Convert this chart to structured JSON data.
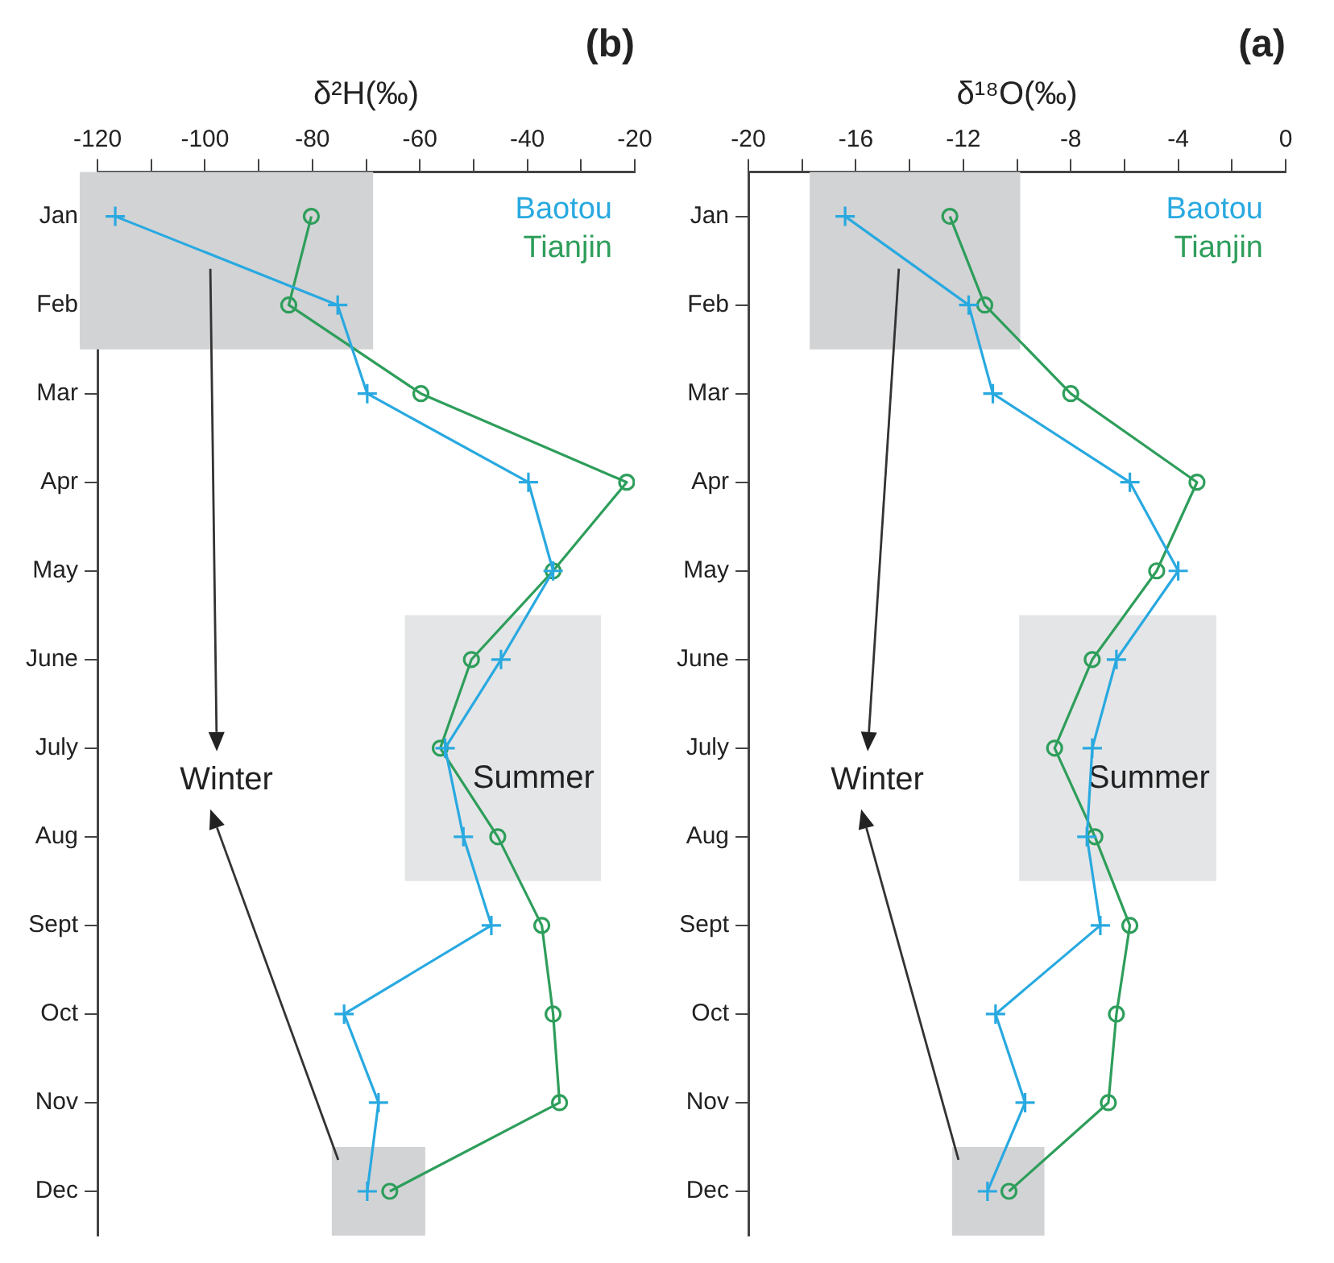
{
  "chart_data": [
    {
      "type": "line",
      "orientation": "horizontal",
      "title": "(a)",
      "xlabel": "δ¹⁸O(‰)",
      "categories": [
        "Jan",
        "Feb",
        "Mar",
        "Apr",
        "May",
        "June",
        "July",
        "Aug",
        "Sept",
        "Oct",
        "Nov",
        "Dec"
      ],
      "series": [
        {
          "name": "Baotou",
          "color": "#29a9e0",
          "marker": "cross",
          "values": [
            -16.4,
            -11.8,
            -10.9,
            -5.8,
            -4.0,
            -6.3,
            -7.2,
            -7.4,
            -6.9,
            -10.8,
            -9.7,
            -11.1
          ]
        },
        {
          "name": "Tianjin",
          "color": "#2e9e5b",
          "marker": "circle",
          "values": [
            -12.5,
            -11.2,
            -8.0,
            -3.3,
            -4.8,
            -7.2,
            -8.6,
            -7.1,
            -5.8,
            -6.3,
            -6.6,
            -10.3
          ]
        }
      ],
      "xlim": [
        -20,
        0
      ],
      "xticks": [
        -20,
        {
          "value": -18,
          "label": null
        },
        -16,
        {
          "value": -14,
          "label": null
        },
        -12,
        {
          "value": -10,
          "label": null
        },
        -8,
        {
          "value": -6,
          "label": null
        },
        -4,
        {
          "value": -2,
          "label": null
        },
        0
      ],
      "grid": false,
      "legend": "top right",
      "bands": [
        {
          "axis": "y",
          "from": "Jan",
          "to": "Feb",
          "color": "#d2d3d5"
        },
        {
          "axis": "y",
          "from": "June",
          "to": "Aug",
          "label": "Summer",
          "color": "#e4e5e6"
        },
        {
          "axis": "y",
          "from": "Dec",
          "to": "Dec",
          "color": "#d2d3d5"
        }
      ],
      "annotations": [
        "Winter"
      ]
    },
    {
      "type": "line",
      "orientation": "horizontal",
      "title": "(b)",
      "xlabel": "δ²H(‰)",
      "categories": [
        "Jan",
        "Feb",
        "Mar",
        "Apr",
        "May",
        "June",
        "July",
        "Aug",
        "Sept",
        "Oct",
        "Nov",
        "Dec"
      ],
      "series": [
        {
          "name": "Baotou",
          "color": "#29a9e0",
          "marker": "cross",
          "values": [
            -116.7,
            -75.3,
            -69.8,
            -39.8,
            -35.2,
            -44.9,
            -55.3,
            -51.9,
            -46.7,
            -74.1,
            -67.7,
            -69.8
          ]
        },
        {
          "name": "Tianjin",
          "color": "#2e9e5b",
          "marker": "circle",
          "values": [
            -80.2,
            -84.4,
            -59.8,
            -21.5,
            -35.2,
            -50.4,
            -56.2,
            -45.5,
            -37.3,
            -35.2,
            -34.0,
            -65.6
          ]
        }
      ],
      "xlim": [
        -120,
        -20
      ],
      "xticks": [
        -120,
        {
          "value": -110,
          "label": null
        },
        -100,
        {
          "value": -90,
          "label": null
        },
        -80,
        {
          "value": -70,
          "label": null
        },
        -60,
        {
          "value": -50,
          "label": null
        },
        -40,
        {
          "value": -30,
          "label": null
        },
        -20
      ],
      "grid": false,
      "legend": "top right",
      "bands": [
        {
          "axis": "y",
          "from": "Jan",
          "to": "Feb",
          "color": "#d2d3d5"
        },
        {
          "axis": "y",
          "from": "June",
          "to": "Aug",
          "label": "Summer",
          "color": "#e4e5e6"
        },
        {
          "axis": "y",
          "from": "Dec",
          "to": "Dec",
          "color": "#d2d3d5"
        }
      ],
      "annotations": [
        "Winter"
      ]
    }
  ]
}
